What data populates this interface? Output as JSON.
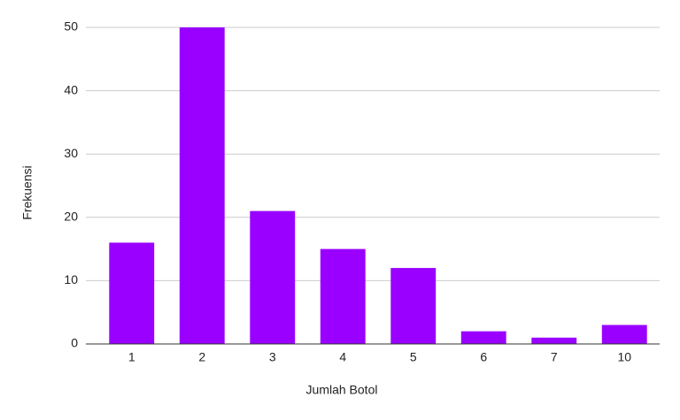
{
  "chart_data": {
    "type": "bar",
    "x_label": "Jumlah Botol",
    "y_label": "Frekuensi",
    "categories": [
      "1",
      "2",
      "3",
      "4",
      "5",
      "6",
      "7",
      "10"
    ],
    "values": [
      16,
      50,
      21,
      15,
      12,
      2,
      1,
      3
    ],
    "color": "#9900ff",
    "ylim": [
      0,
      50
    ],
    "yticks": [
      0,
      10,
      20,
      30,
      40,
      50
    ],
    "grid": true
  }
}
